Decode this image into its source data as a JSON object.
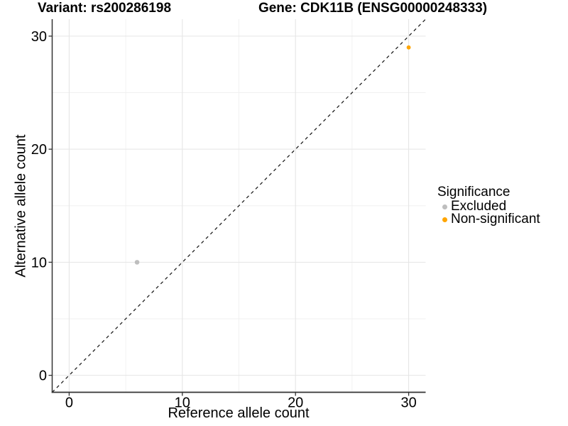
{
  "chart_data": {
    "type": "scatter",
    "titles": {
      "left": "Variant: rs200286198",
      "right": "Gene: CDK11B (ENSG00000248333)"
    },
    "xlabel": "Reference allele count",
    "ylabel": "Alternative allele count",
    "xlim": [
      -1.5,
      31.5
    ],
    "ylim": [
      -1.5,
      31.5
    ],
    "x_ticks": [
      0,
      10,
      20,
      30
    ],
    "y_ticks": [
      0,
      10,
      20,
      30
    ],
    "x_minor_ticks": [
      5,
      15,
      25
    ],
    "y_minor_ticks": [
      5,
      15,
      25
    ],
    "grid": true,
    "identity_line": {
      "style": "dashed",
      "slope": 1,
      "intercept": 0,
      "color": "#1a1a1a"
    },
    "series": [
      {
        "name": "Excluded",
        "color": "#BEBEBE",
        "size": 3.3,
        "points": [
          [
            6,
            10
          ]
        ]
      },
      {
        "name": "Non-significant",
        "color": "#FFA500",
        "size": 2.9,
        "points": [
          [
            30,
            29
          ]
        ]
      }
    ],
    "legend": {
      "title": "Significance",
      "position": "right"
    }
  },
  "colors": {
    "axis_line": "#333333",
    "tick_mark": "#333333",
    "grid_major": "#E5E5E5",
    "grid_minor": "#F0F0F0",
    "background": "#FFFFFF"
  }
}
